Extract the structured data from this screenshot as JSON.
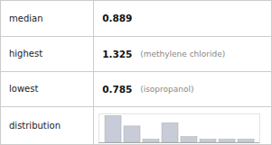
{
  "chart_data": {
    "type": "bar",
    "categories": [
      null,
      null,
      null,
      null,
      null,
      null,
      null,
      null
    ],
    "values": [
      0.85,
      0.52,
      0.1,
      0.62,
      0.18,
      0.1,
      0.1,
      0.1
    ],
    "color": "#c8ccd8",
    "ylim": [
      0,
      0.918
    ],
    "tick_labels": false,
    "grid": false,
    "annotations": [
      {
        "label": "median",
        "value": "0.889"
      },
      {
        "label": "highest",
        "value": "1.325",
        "note": "(methylene chloride)"
      },
      {
        "label": "lowest",
        "value": "0.785",
        "note": "(isopropanol)"
      },
      {
        "label": "distribution"
      }
    ]
  }
}
